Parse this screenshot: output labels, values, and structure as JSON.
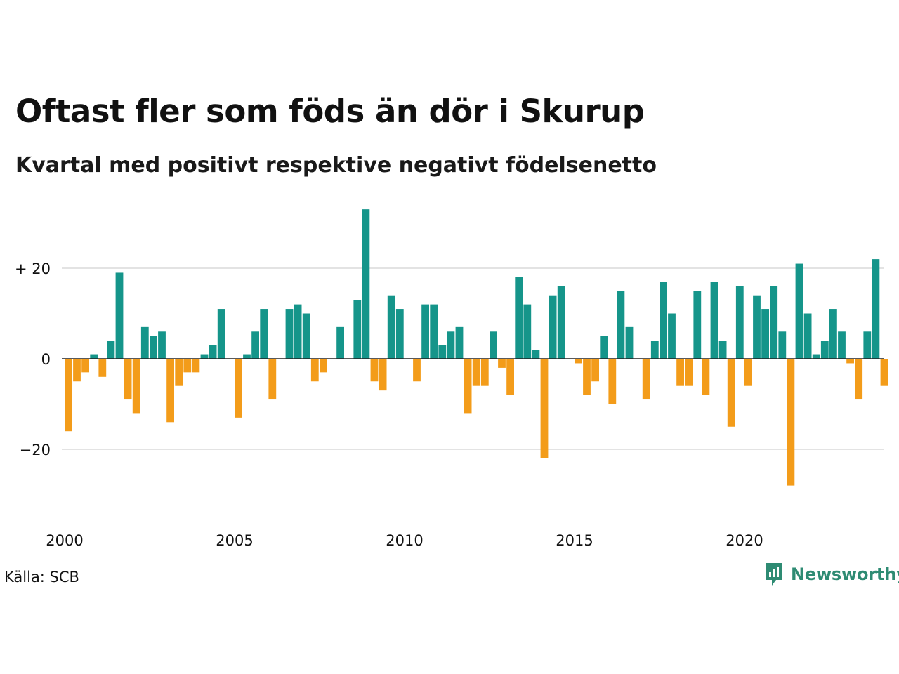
{
  "chart_data": {
    "type": "bar",
    "title": "Oftast fler som föds än dör i Skurup",
    "subtitle": "Kvartal med positivt respektive negativt födelsenetto",
    "xlabel": "",
    "ylabel": "",
    "source": "Källa: SCB",
    "brand": "Newsworthy",
    "start_year": 2000,
    "year_ticks": [
      "2000",
      "2005",
      "2010",
      "2015",
      "2020"
    ],
    "y_ticks": [
      {
        "value": 20,
        "label": "+ 20"
      },
      {
        "value": 0,
        "label": "0"
      },
      {
        "value": -20,
        "label": "−20"
      }
    ],
    "ylim": [
      -30,
      35
    ],
    "grid": true,
    "colors": {
      "positive": "#15958a",
      "negative": "#f39c1a",
      "grid": "#e3e3e3",
      "zero": "#222222"
    },
    "categories": [
      "2000 K1",
      "2000 K2",
      "2000 K3",
      "2000 K4",
      "2001 K1",
      "2001 K2",
      "2001 K3",
      "2001 K4",
      "2002 K1",
      "2002 K2",
      "2002 K3",
      "2002 K4",
      "2003 K1",
      "2003 K2",
      "2003 K3",
      "2003 K4",
      "2004 K1",
      "2004 K2",
      "2004 K3",
      "2004 K4",
      "2005 K1",
      "2005 K2",
      "2005 K3",
      "2005 K4",
      "2006 K1",
      "2006 K2",
      "2006 K3",
      "2006 K4",
      "2007 K1",
      "2007 K2",
      "2007 K3",
      "2007 K4",
      "2008 K1",
      "2008 K2",
      "2008 K3",
      "2008 K4",
      "2009 K1",
      "2009 K2",
      "2009 K3",
      "2009 K4",
      "2010 K1",
      "2010 K2",
      "2010 K3",
      "2010 K4",
      "2011 K1",
      "2011 K2",
      "2011 K3",
      "2011 K4",
      "2012 K1",
      "2012 K2",
      "2012 K3",
      "2012 K4",
      "2013 K1",
      "2013 K2",
      "2013 K3",
      "2013 K4",
      "2014 K1",
      "2014 K2",
      "2014 K3",
      "2014 K4",
      "2015 K1",
      "2015 K2",
      "2015 K3",
      "2015 K4",
      "2016 K1",
      "2016 K2",
      "2016 K3",
      "2016 K4",
      "2017 K1",
      "2017 K2",
      "2017 K3",
      "2017 K4",
      "2018 K1",
      "2018 K2",
      "2018 K3",
      "2018 K4",
      "2019 K1",
      "2019 K2",
      "2019 K3",
      "2019 K4",
      "2020 K1",
      "2020 K2",
      "2020 K3",
      "2020 K4",
      "2021 K1",
      "2021 K2",
      "2021 K3",
      "2021 K4",
      "2022 K1",
      "2022 K2",
      "2022 K3",
      "2022 K4",
      "2023 K1",
      "2023 K2",
      "2023 K3",
      "2023 K4",
      "2024 K1"
    ],
    "values": [
      -16,
      -5,
      -3,
      1,
      -4,
      4,
      19,
      -9,
      -12,
      7,
      5,
      6,
      -14,
      -6,
      -3,
      -3,
      1,
      3,
      11,
      0,
      -13,
      1,
      6,
      11,
      -9,
      0,
      11,
      12,
      10,
      -5,
      -3,
      0,
      7,
      0,
      13,
      33,
      -5,
      -7,
      14,
      11,
      0,
      -5,
      12,
      12,
      3,
      6,
      7,
      -12,
      -6,
      -6,
      6,
      -2,
      -8,
      18,
      12,
      2,
      -22,
      14,
      16,
      0,
      -1,
      -8,
      -5,
      5,
      -10,
      15,
      7,
      0,
      -9,
      4,
      17,
      10,
      -6,
      -6,
      15,
      -8,
      17,
      4,
      -15,
      16,
      -6,
      14,
      11,
      16,
      6,
      -28,
      21,
      10,
      1,
      4,
      11,
      6,
      -1,
      -9,
      6,
      22,
      -6
    ]
  }
}
